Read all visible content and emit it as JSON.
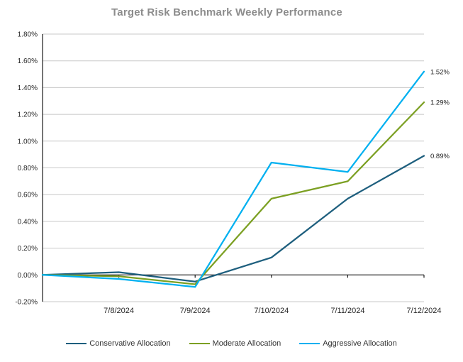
{
  "chart_data": {
    "type": "line",
    "title": "Target Risk Benchmark Weekly Performance",
    "xlabel": "",
    "ylabel": "",
    "ylim": [
      -0.2,
      1.8
    ],
    "y_tick_labels": [
      "1.80%",
      "1.60%",
      "1.40%",
      "1.20%",
      "1.00%",
      "0.80%",
      "0.60%",
      "0.40%",
      "0.20%",
      "0.00%",
      "-0.20%"
    ],
    "x": [
      "",
      "7/8/2024",
      "7/9/2024",
      "7/10/2024",
      "7/11/2024",
      "7/12/2024"
    ],
    "grid": "horizontal",
    "legend_position": "bottom",
    "series": [
      {
        "name": "Conservative Allocation",
        "color": "#1E5F7E",
        "values": [
          0.0,
          0.02,
          -0.05,
          0.13,
          0.57,
          0.89
        ],
        "end_label": "0.89%"
      },
      {
        "name": "Moderate Allocation",
        "color": "#7CA023",
        "values": [
          0.0,
          -0.01,
          -0.07,
          0.57,
          0.7,
          1.29
        ],
        "end_label": "1.29%"
      },
      {
        "name": "Aggressive Allocation",
        "color": "#00B0F0",
        "values": [
          0.0,
          -0.03,
          -0.09,
          0.84,
          0.77,
          1.52
        ],
        "end_label": "1.52%"
      }
    ],
    "colors": {
      "title": "#8c8c8c",
      "gridline": "#c8c8c8",
      "axis": "#1a1a1a",
      "tick_label": "#262626",
      "end_label": "#1a1a1a"
    }
  }
}
